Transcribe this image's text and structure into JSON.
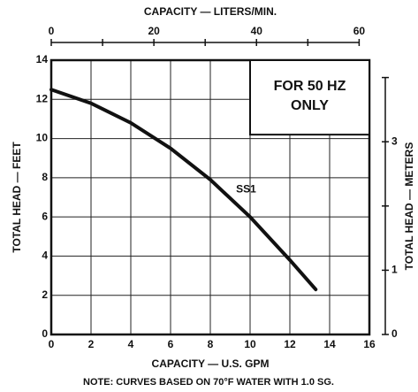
{
  "chart_data": {
    "type": "line",
    "title": "CAPACITY — LITERS/MIN.",
    "xlabel": "CAPACITY — U.S. GPM",
    "ylabel": "TOTAL HEAD — FEET",
    "y2label": "TOTAL HEAD — METERS",
    "note": "NOTE: CURVES BASED ON 70°F WATER WITH 1.0 SG.",
    "annotation": [
      "FOR 50 HZ",
      "ONLY"
    ],
    "x": [
      0,
      2,
      4,
      6,
      8,
      10,
      12,
      13.3
    ],
    "series": [
      {
        "name": "SS1",
        "color": "#111111",
        "values": [
          12.5,
          11.8,
          10.8,
          9.5,
          7.9,
          6.0,
          3.8,
          2.3
        ],
        "label_at": [
          9.8,
          7.4
        ]
      }
    ],
    "xlim": [
      0,
      16
    ],
    "xticks": [
      0,
      2,
      4,
      6,
      8,
      10,
      12,
      14,
      16
    ],
    "ylim": [
      0,
      14
    ],
    "yticks": [
      0,
      2,
      4,
      6,
      8,
      10,
      12,
      14
    ],
    "x2lim": [
      0,
      62
    ],
    "x2ticks": [
      0,
      20,
      40,
      60
    ],
    "x2minorticks": [
      10,
      30,
      50
    ],
    "y2lim": [
      0,
      4.27
    ],
    "y2ticks": [
      0,
      1,
      3
    ],
    "y2minorticks": [
      2,
      4
    ],
    "grid": true
  }
}
